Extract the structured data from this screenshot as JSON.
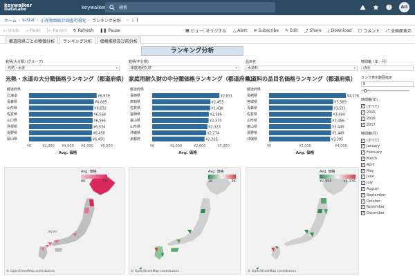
{
  "header": {
    "logo_line1": "keywalker",
    "logo_line2": "DataLabo",
    "user_name": "keywalker",
    "search_placeholder": "検索",
    "avatar": "AO"
  },
  "breadcrumb": {
    "home": "ホーム",
    "sep": "›",
    "site": "e-Stat",
    "project": "小売物価統計調査可視化",
    "current": "ランキング分析",
    "fav_count": "1"
  },
  "toolbar": {
    "undo": "Undo",
    "redo": "Redo",
    "revert": "Revert",
    "refresh": "Refresh",
    "pause": "Pause",
    "view": "ビュー: オリジナル",
    "alert": "Alert",
    "subscribe": "Subscribe",
    "edit": "Edit",
    "share": "Share",
    "download": "Download",
    "comment": "コメント",
    "fullscreen": "全画面表示"
  },
  "tabs": [
    "都道府県ごとの物価分析",
    "ランキング分析",
    "価格推移及び前分析"
  ],
  "dashboard": {
    "title": "ランキング分析",
    "filters": [
      {
        "label": "銘柄(大分類) (グループ)",
        "value": "光熱・水道"
      },
      {
        "label": "銘柄(中分類)",
        "value": "家庭用耐久財"
      },
      {
        "label": "品目名",
        "value": "水道料"
      }
    ],
    "axis_title": "Avg. 価格",
    "pref_header": "都道府県",
    "right_panel": {
      "period_label": "時間軸（年・月）",
      "period_value": "(All)",
      "rank_label": "ランク表示範囲指定",
      "rank_value": "8",
      "year_label": "時間軸(年)",
      "years": [
        "(すべて)",
        "2015",
        "2016",
        "2017"
      ],
      "month_label": "時間軸(月)",
      "months": [
        "(すべて)",
        "January",
        "February",
        "March",
        "April",
        "May",
        "June",
        "July",
        "August",
        "September",
        "October",
        "November",
        "December"
      ]
    },
    "maps": [
      {
        "legend_title": "Avg. 価格",
        "legend_min": "6K",
        "legend_max": "7K",
        "label": "Japan",
        "attribution": "© OpenStreetMap contributors",
        "color_low": "#f5c6cf",
        "color_high": "#d9285a"
      },
      {
        "legend_title": "Avg. 価格",
        "legend_min": "2K",
        "legend_max": "3K",
        "label": "",
        "attribution": "© OpenStreetMap contributors",
        "color_low": "#2f8c4b",
        "color_high": "#e23b3b"
      },
      {
        "legend_title": "Avg. 価格",
        "legend_min": "¥2,995",
        "legend_max": "¥4,276",
        "label": "",
        "attribution": "© OpenStreetMap contributors",
        "color_low": "#2f8c4b",
        "color_high": "#e23b3b"
      }
    ]
  },
  "chart_data": [
    {
      "type": "bar",
      "title": "光熱・水道の大分類価格ランキング（都道府県）",
      "categories": [
        "北海道",
        "青森県",
        "山形県",
        "佐賀県",
        "山口県",
        "島根県",
        "長野県",
        "岡山県"
      ],
      "values": [
        6979,
        6685,
        6632,
        6568,
        6566,
        6534,
        6490,
        6450
      ],
      "value_labels": [
        "¥6,979",
        "¥6,685",
        "¥6,632",
        "¥6,568",
        "¥6,566",
        "¥6,534",
        "¥6,490",
        "¥6,450"
      ],
      "xlim": [
        0,
        8000
      ],
      "ticks": [
        "¥0",
        "¥2,000",
        "¥4,000",
        "¥6,000",
        "¥8,000"
      ],
      "xlabel": "Avg. 価格",
      "ylabel": "都道府県"
    },
    {
      "type": "bar",
      "title": "家庭用耐久財の中分類価格ランキング（都道府県）",
      "categories": [
        "長崎県",
        "高知県",
        "佐賀県",
        "宮崎県",
        "富山県",
        "山形県",
        "沖縄県",
        "京都府"
      ],
      "values": [
        2831,
        2453,
        2438,
        2386,
        2374,
        2323,
        2274,
        2205
      ],
      "value_labels": [
        "¥2,831",
        "¥2,453",
        "¥2,438",
        "¥2,386",
        "¥2,374",
        "¥2,323",
        "¥2,274",
        "¥2,205"
      ],
      "xlim": [
        0,
        3000
      ],
      "ticks": [
        "¥0",
        "¥1,000",
        "¥2,000",
        "¥3,000"
      ],
      "xlabel": "Avg. 価格",
      "ylabel": "都道府県"
    },
    {
      "type": "bar",
      "title": "水道料の品目名価格ランキング（都道府県）",
      "categories": [
        "長崎県",
        "宮城県",
        "青森県",
        "佐賀県",
        "山形県",
        "富山県",
        "長野県",
        "沖縄県"
      ],
      "values": [
        4276,
        3569,
        3531,
        3494,
        3456,
        3445,
        3449,
        3395
      ],
      "value_labels": [
        "¥4,276",
        "¥3,569",
        "¥3,531",
        "¥3,494",
        "¥3,456",
        "¥3,445",
        "¥3,449",
        "¥3,395"
      ],
      "xlim": [
        0,
        4000
      ],
      "ticks": [
        "¥0",
        "¥2,000",
        "¥4,000"
      ],
      "xlabel": "Avg. 価格",
      "ylabel": "都道府県"
    }
  ]
}
